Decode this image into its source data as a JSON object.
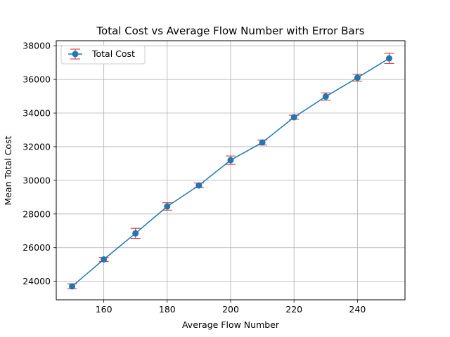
{
  "chart_data": {
    "type": "line",
    "title": "Total Cost vs Average Flow Number with Error Bars",
    "xlabel": "Average Flow Number",
    "ylabel": "Mean Total Cost",
    "xlim": [
      145,
      255
    ],
    "ylim": [
      22900,
      38300
    ],
    "xticks": [
      160,
      180,
      200,
      220,
      240
    ],
    "yticks": [
      24000,
      26000,
      28000,
      30000,
      32000,
      34000,
      36000,
      38000
    ],
    "grid": true,
    "legend_position": "upper left",
    "series": [
      {
        "name": "Total Cost",
        "color": "#1f77b4",
        "error_color": "#d62728",
        "x": [
          150,
          160,
          170,
          180,
          190,
          200,
          210,
          220,
          230,
          240,
          250
        ],
        "y": [
          23700,
          25300,
          26850,
          28450,
          29700,
          31200,
          32250,
          33750,
          34980,
          36100,
          37250
        ],
        "error": [
          150,
          120,
          300,
          220,
          140,
          250,
          150,
          120,
          220,
          200,
          300
        ]
      }
    ]
  }
}
